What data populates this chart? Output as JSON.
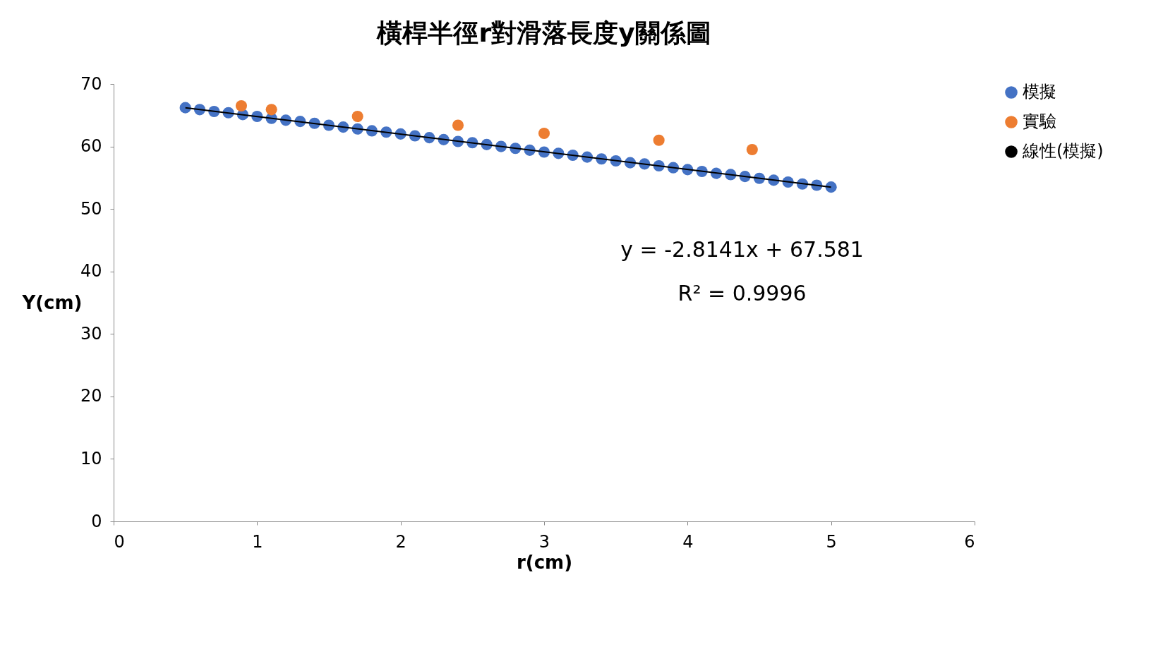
{
  "chart_data": {
    "type": "scatter",
    "title": "橫桿半徑r對滑落長度y關係圖",
    "xlabel": "r(cm)",
    "ylabel": "Y(cm)",
    "xlim": [
      0,
      6
    ],
    "xticks": [
      0,
      1,
      2,
      3,
      4,
      5,
      6
    ],
    "ylim": [
      0,
      70
    ],
    "yticks": [
      0,
      10,
      20,
      30,
      40,
      50,
      60,
      70
    ],
    "grid": false,
    "legend": "right",
    "marker": "circle",
    "annotations": [
      "y = -2.8141x + 67.581",
      "R² = 0.9996"
    ],
    "series": [
      {
        "name": "模擬",
        "color": "#4472c4",
        "x": [
          0.5,
          0.6,
          0.7,
          0.8,
          0.9,
          1.0,
          1.1,
          1.2,
          1.3,
          1.4,
          1.5,
          1.6,
          1.7,
          1.8,
          1.9,
          2.0,
          2.1,
          2.2,
          2.3,
          2.4,
          2.5,
          2.6,
          2.7,
          2.8,
          2.9,
          3.0,
          3.1,
          3.2,
          3.3,
          3.4,
          3.5,
          3.6,
          3.7,
          3.8,
          3.9,
          4.0,
          4.1,
          4.2,
          4.3,
          4.4,
          4.5,
          4.6,
          4.7,
          4.8,
          4.9,
          5.0
        ],
        "values": [
          66.2,
          65.9,
          65.6,
          65.4,
          65.1,
          64.8,
          64.5,
          64.2,
          64.0,
          63.7,
          63.4,
          63.1,
          62.8,
          62.5,
          62.3,
          62.0,
          61.7,
          61.4,
          61.1,
          60.8,
          60.6,
          60.3,
          60.0,
          59.7,
          59.4,
          59.1,
          58.9,
          58.6,
          58.3,
          58.0,
          57.7,
          57.4,
          57.2,
          56.9,
          56.6,
          56.3,
          56.0,
          55.7,
          55.5,
          55.2,
          54.9,
          54.6,
          54.3,
          54.0,
          53.8,
          53.5
        ]
      },
      {
        "name": "實驗",
        "color": "#ed7d31",
        "x": [
          0.89,
          1.1,
          1.7,
          2.4,
          3.0,
          3.8,
          4.45
        ],
        "values": [
          66.5,
          65.9,
          64.8,
          63.4,
          62.1,
          61.0,
          59.5
        ]
      },
      {
        "name": "線性(模擬)",
        "type": "line",
        "color": "#000000",
        "line_style": "solid",
        "marker": "none",
        "x": [
          0.5,
          5.0
        ],
        "values": [
          66.2,
          53.5
        ]
      }
    ]
  }
}
